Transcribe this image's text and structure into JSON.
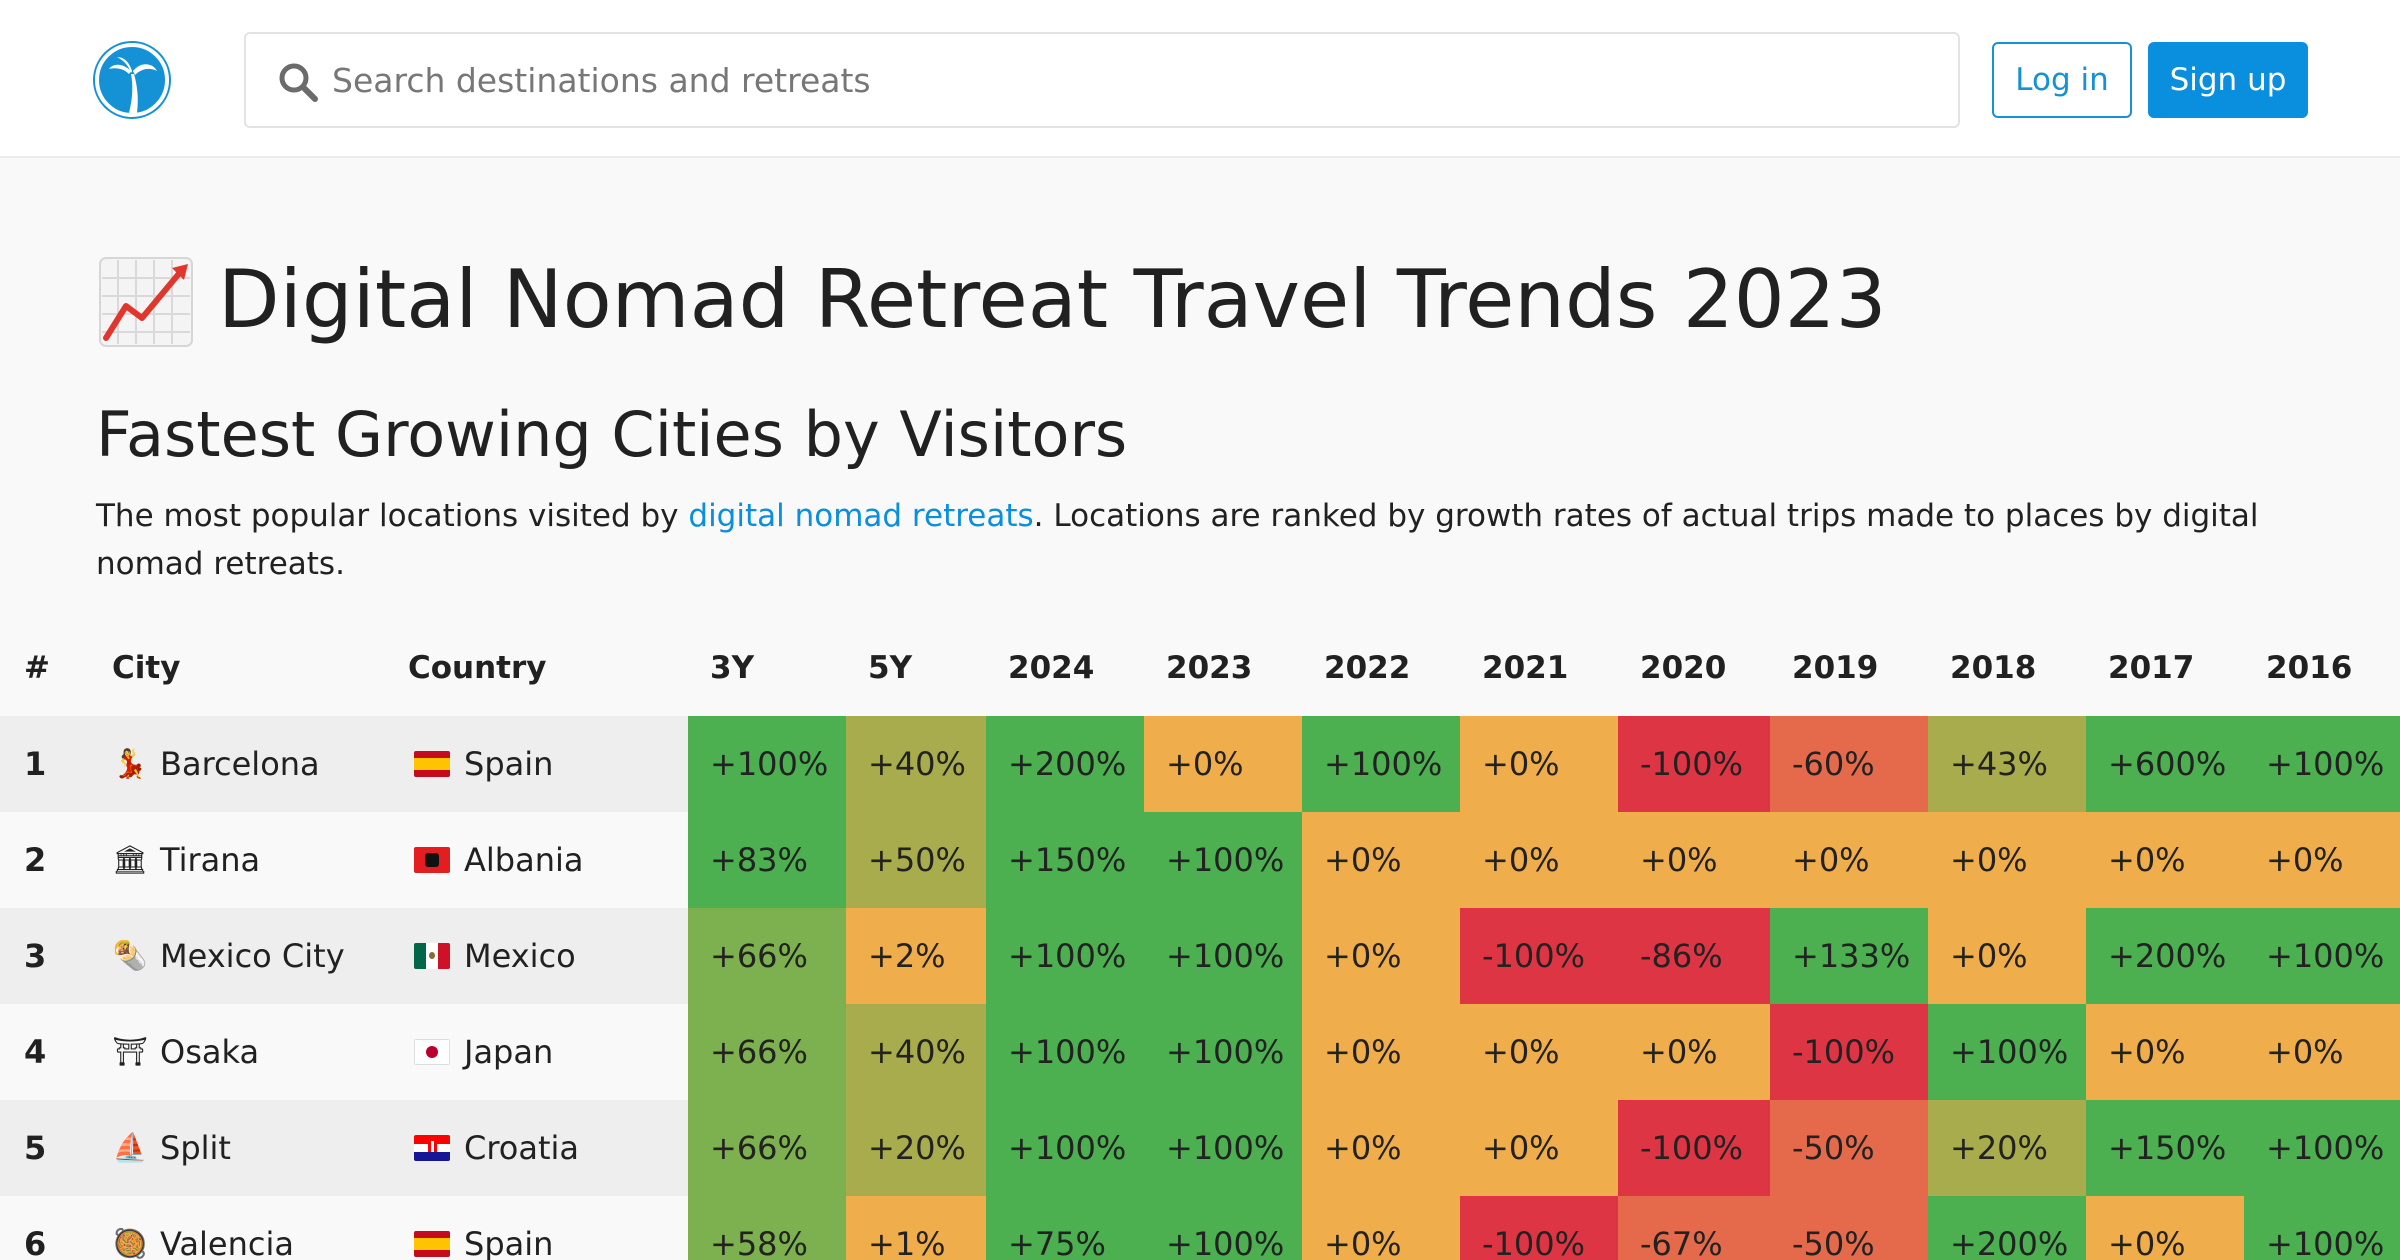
{
  "header": {
    "search_placeholder": "Search destinations and retreats",
    "login_label": "Log in",
    "signup_label": "Sign up"
  },
  "page": {
    "title": "Digital Nomad Retreat Travel Trends 2023",
    "section_title": "Fastest Growing Cities by Visitors",
    "intro_before": "The most popular locations visited by ",
    "intro_link": "digital nomad retreats",
    "intro_after": ". Locations are ranked by growth rates of actual trips made to places by digital nomad retreats."
  },
  "table": {
    "headers": [
      "#",
      "City",
      "Country",
      "3Y",
      "5Y",
      "2024",
      "2023",
      "2022",
      "2021",
      "2020",
      "2019",
      "2018",
      "2017",
      "2016"
    ],
    "rows": [
      {
        "rank": "1",
        "city": "Barcelona",
        "city_icon": "dancer-icon",
        "country": "Spain",
        "flag": "spain-flag-icon",
        "values": [
          "+100%",
          "+40%",
          "+200%",
          "+0%",
          "+100%",
          "+0%",
          "-100%",
          "-60%",
          "+43%",
          "+600%",
          "+100%"
        ]
      },
      {
        "rank": "2",
        "city": "Tirana",
        "city_icon": "classical-building-icon",
        "country": "Albania",
        "flag": "albania-flag-icon",
        "values": [
          "+83%",
          "+50%",
          "+150%",
          "+100%",
          "+0%",
          "+0%",
          "+0%",
          "+0%",
          "+0%",
          "+0%",
          "+0%"
        ]
      },
      {
        "rank": "3",
        "city": "Mexico City",
        "city_icon": "burrito-icon",
        "country": "Mexico",
        "flag": "mexico-flag-icon",
        "values": [
          "+66%",
          "+2%",
          "+100%",
          "+100%",
          "+0%",
          "-100%",
          "-86%",
          "+133%",
          "+0%",
          "+200%",
          "+100%"
        ]
      },
      {
        "rank": "4",
        "city": "Osaka",
        "city_icon": "torii-gate-icon",
        "country": "Japan",
        "flag": "japan-flag-icon",
        "values": [
          "+66%",
          "+40%",
          "+100%",
          "+100%",
          "+0%",
          "+0%",
          "+0%",
          "-100%",
          "+100%",
          "+0%",
          "+0%"
        ]
      },
      {
        "rank": "5",
        "city": "Split",
        "city_icon": "sailboat-icon",
        "country": "Croatia",
        "flag": "croatia-flag-icon",
        "values": [
          "+66%",
          "+20%",
          "+100%",
          "+100%",
          "+0%",
          "+0%",
          "-100%",
          "-50%",
          "+20%",
          "+150%",
          "+100%"
        ]
      },
      {
        "rank": "6",
        "city": "Valencia",
        "city_icon": "paella-icon",
        "country": "Spain",
        "flag": "spain-flag-icon",
        "values": [
          "+58%",
          "+1%",
          "+75%",
          "+100%",
          "+0%",
          "-100%",
          "-67%",
          "-50%",
          "+200%",
          "+0%",
          "+100%"
        ]
      }
    ]
  },
  "colors": {
    "accent": "#0a8fde",
    "strong_positive": "#4caf50",
    "positive": "#7db04e",
    "slight_positive": "#a8ac4c",
    "neutral": "#efad4b",
    "negative": "#e56a4b",
    "strong_negative": "#de3545"
  }
}
